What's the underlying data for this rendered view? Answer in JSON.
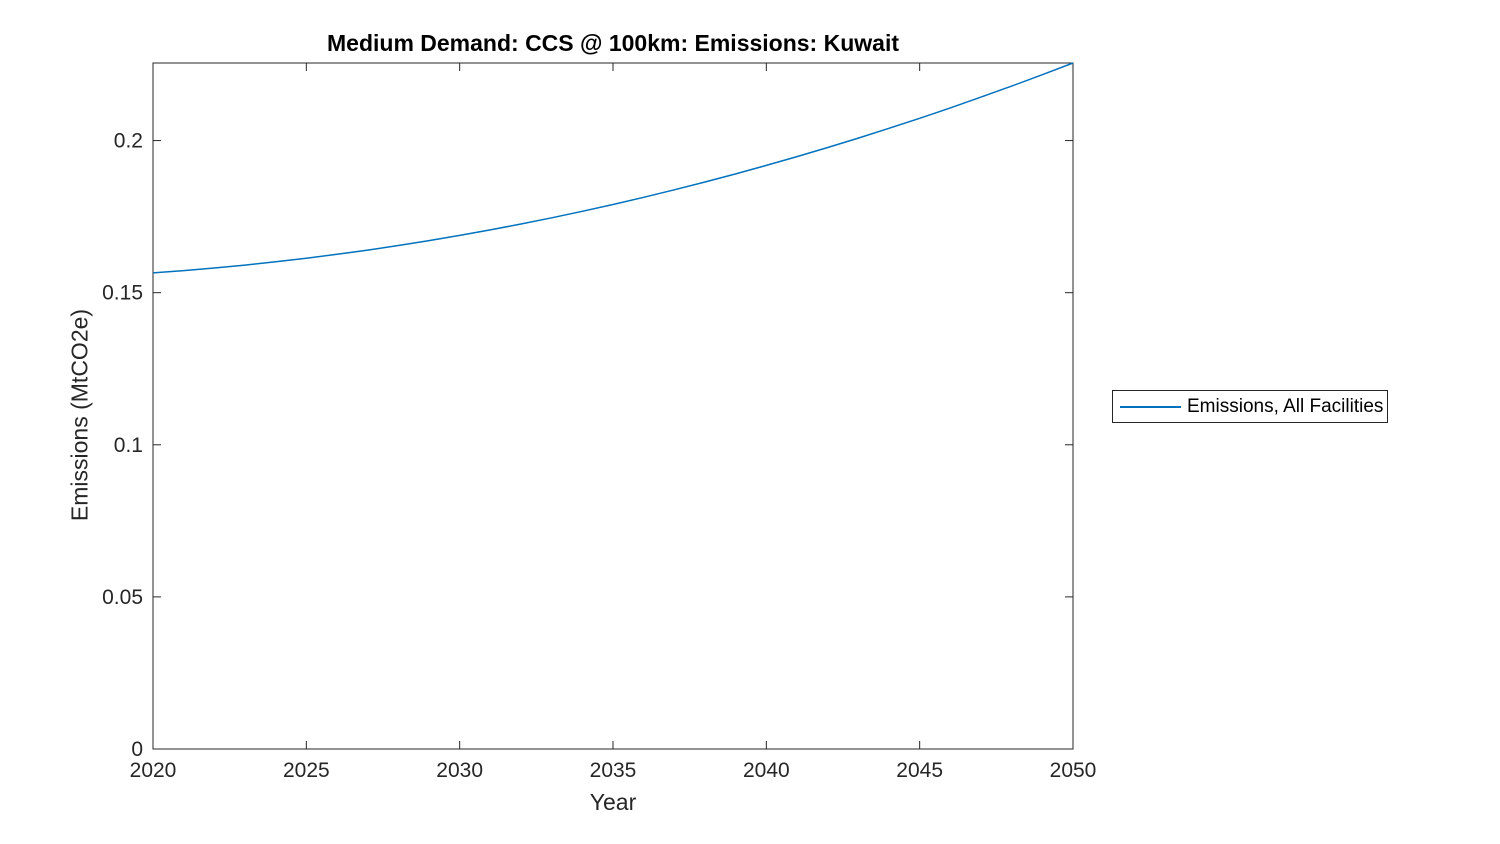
{
  "figure": {
    "background": "#ffffff",
    "axis_color": "#262626",
    "title_color": "#000000"
  },
  "chart_data": {
    "type": "line",
    "title": "Medium Demand: CCS @ 100km: Emissions: Kuwait",
    "xlabel": "Year",
    "ylabel": "Emissions (MtCO2e)",
    "xlim": [
      2020,
      2050
    ],
    "ylim": [
      0,
      0.2255
    ],
    "grid": false,
    "box": true,
    "tick_direction": "in",
    "xticks": {
      "values": [
        2020,
        2025,
        2030,
        2035,
        2040,
        2045,
        2050
      ],
      "labels": [
        "2020",
        "2025",
        "2030",
        "2035",
        "2040",
        "2045",
        "2050"
      ]
    },
    "yticks": {
      "values": [
        0,
        0.05,
        0.1,
        0.15,
        0.2
      ],
      "labels": [
        "0",
        "0.05",
        "0.1",
        "0.15",
        "0.2"
      ]
    },
    "legend": {
      "position": "east-outside",
      "entries": [
        {
          "label": "Emissions, All Facilities",
          "color": "#0072BD"
        }
      ]
    },
    "series": [
      {
        "name": "Emissions, All Facilities",
        "color": "#0072BD",
        "x": [
          2020,
          2021,
          2022,
          2023,
          2024,
          2025,
          2026,
          2027,
          2028,
          2029,
          2030,
          2031,
          2032,
          2033,
          2034,
          2035,
          2036,
          2037,
          2038,
          2039,
          2040,
          2041,
          2042,
          2043,
          2044,
          2045,
          2046,
          2047,
          2048,
          2049,
          2050
        ],
        "values": [
          0.1565,
          0.15725,
          0.15811,
          0.15908,
          0.16015,
          0.16133,
          0.16262,
          0.16401,
          0.16551,
          0.16712,
          0.16883,
          0.17065,
          0.17258,
          0.17461,
          0.17675,
          0.179,
          0.18135,
          0.18381,
          0.18638,
          0.18905,
          0.19183,
          0.19472,
          0.19771,
          0.20081,
          0.20402,
          0.20733,
          0.21075,
          0.21428,
          0.21791,
          0.22165,
          0.2255
        ]
      }
    ]
  }
}
